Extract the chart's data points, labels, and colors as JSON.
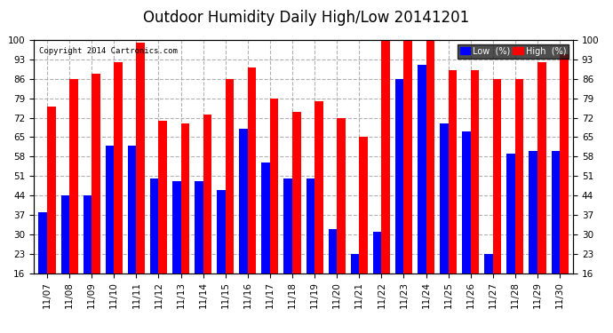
{
  "title": "Outdoor Humidity Daily High/Low 20141201",
  "copyright": "Copyright 2014 Cartronics.com",
  "categories": [
    "11/07",
    "11/08",
    "11/09",
    "11/10",
    "11/11",
    "11/12",
    "11/13",
    "11/14",
    "11/15",
    "11/16",
    "11/17",
    "11/18",
    "11/19",
    "11/20",
    "11/21",
    "11/22",
    "11/23",
    "11/24",
    "11/25",
    "11/26",
    "11/27",
    "11/28",
    "11/29",
    "11/30"
  ],
  "high_values": [
    76,
    86,
    88,
    92,
    99,
    71,
    70,
    73,
    86,
    90,
    79,
    74,
    78,
    72,
    65,
    100,
    100,
    100,
    89,
    89,
    86,
    86,
    92,
    95
  ],
  "low_values": [
    38,
    44,
    44,
    62,
    62,
    50,
    49,
    49,
    46,
    68,
    56,
    50,
    50,
    32,
    23,
    31,
    86,
    91,
    70,
    67,
    23,
    59,
    60,
    60
  ],
  "high_color": "#ff0000",
  "low_color": "#0000ff",
  "bg_color": "#ffffff",
  "plot_bg_color": "#ffffff",
  "grid_color": "#b0b0b0",
  "yticks": [
    16,
    23,
    30,
    37,
    44,
    51,
    58,
    65,
    72,
    79,
    86,
    93,
    100
  ],
  "ymin": 16,
  "ymax": 100,
  "bar_width": 0.38,
  "title_fontsize": 12,
  "tick_fontsize": 7.5,
  "legend_low_label": "Low  (%)",
  "legend_high_label": "High  (%)"
}
